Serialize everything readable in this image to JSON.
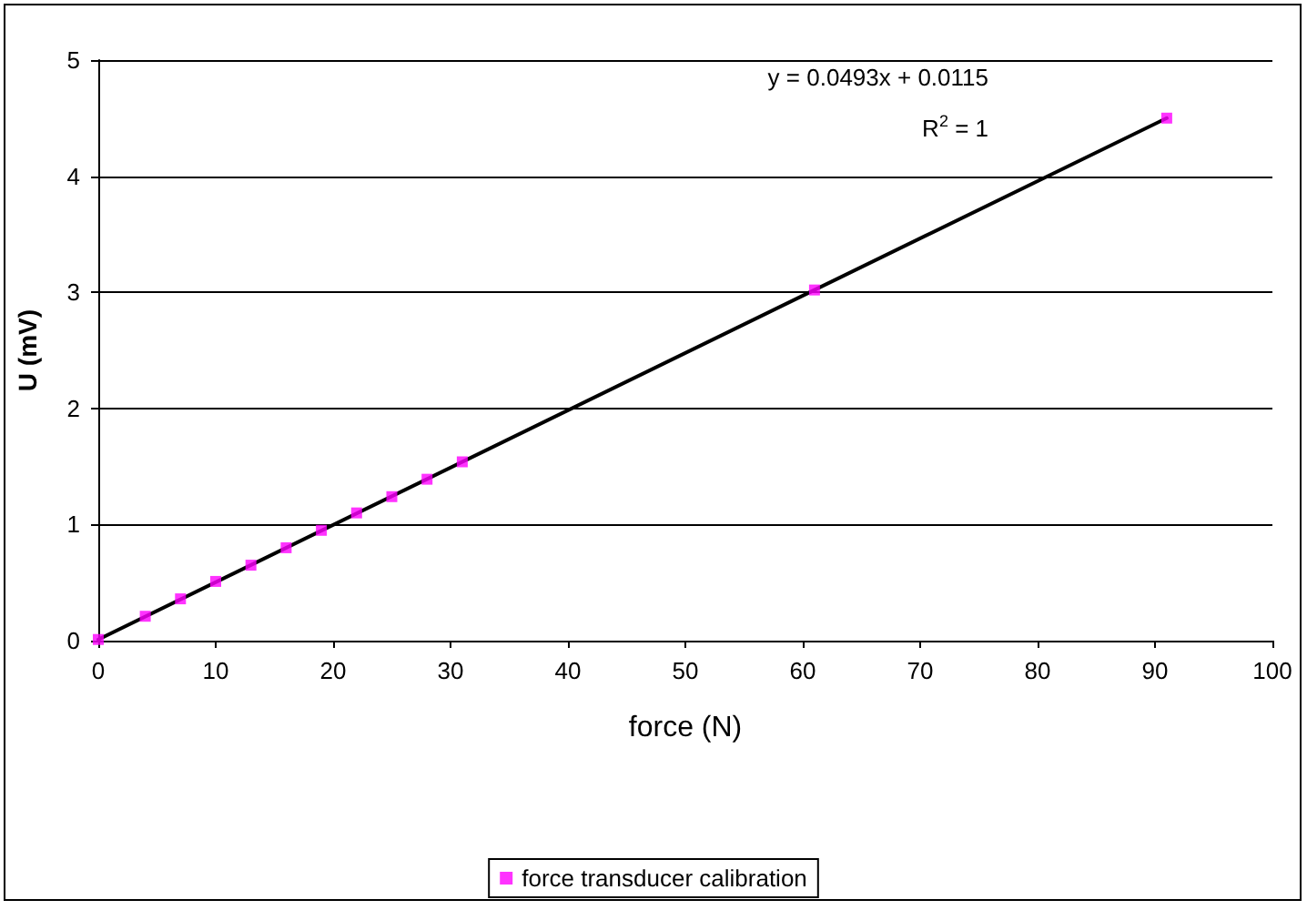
{
  "chart_data": {
    "type": "scatter",
    "xlabel": "force (N)",
    "ylabel": "U (mV)",
    "xlim": [
      0,
      100
    ],
    "xticks": [
      0,
      10,
      20,
      30,
      40,
      50,
      60,
      70,
      80,
      90,
      100
    ],
    "ylim": [
      0,
      5
    ],
    "yticks": [
      0,
      1,
      2,
      3,
      4,
      5
    ],
    "grid": "y",
    "legend": "bottom",
    "marker": "square",
    "annotations": [
      "y = 0.0493x + 0.0115",
      "R$^{2}$ = 1"
    ],
    "series": [
      {
        "name": "force transducer calibration",
        "color": "#ff00ff",
        "x": [
          0,
          4,
          7,
          10,
          13,
          16,
          19,
          22,
          25,
          28,
          31,
          61,
          91
        ],
        "values": [
          0.01,
          0.21,
          0.36,
          0.51,
          0.65,
          0.8,
          0.95,
          1.1,
          1.24,
          1.39,
          1.54,
          3.02,
          4.5
        ]
      },
      {
        "type": "line",
        "color": "#000000",
        "x": [
          0,
          91
        ],
        "values": [
          0.01,
          4.5
        ],
        "marker": "none",
        "line_style": "solid"
      }
    ]
  }
}
